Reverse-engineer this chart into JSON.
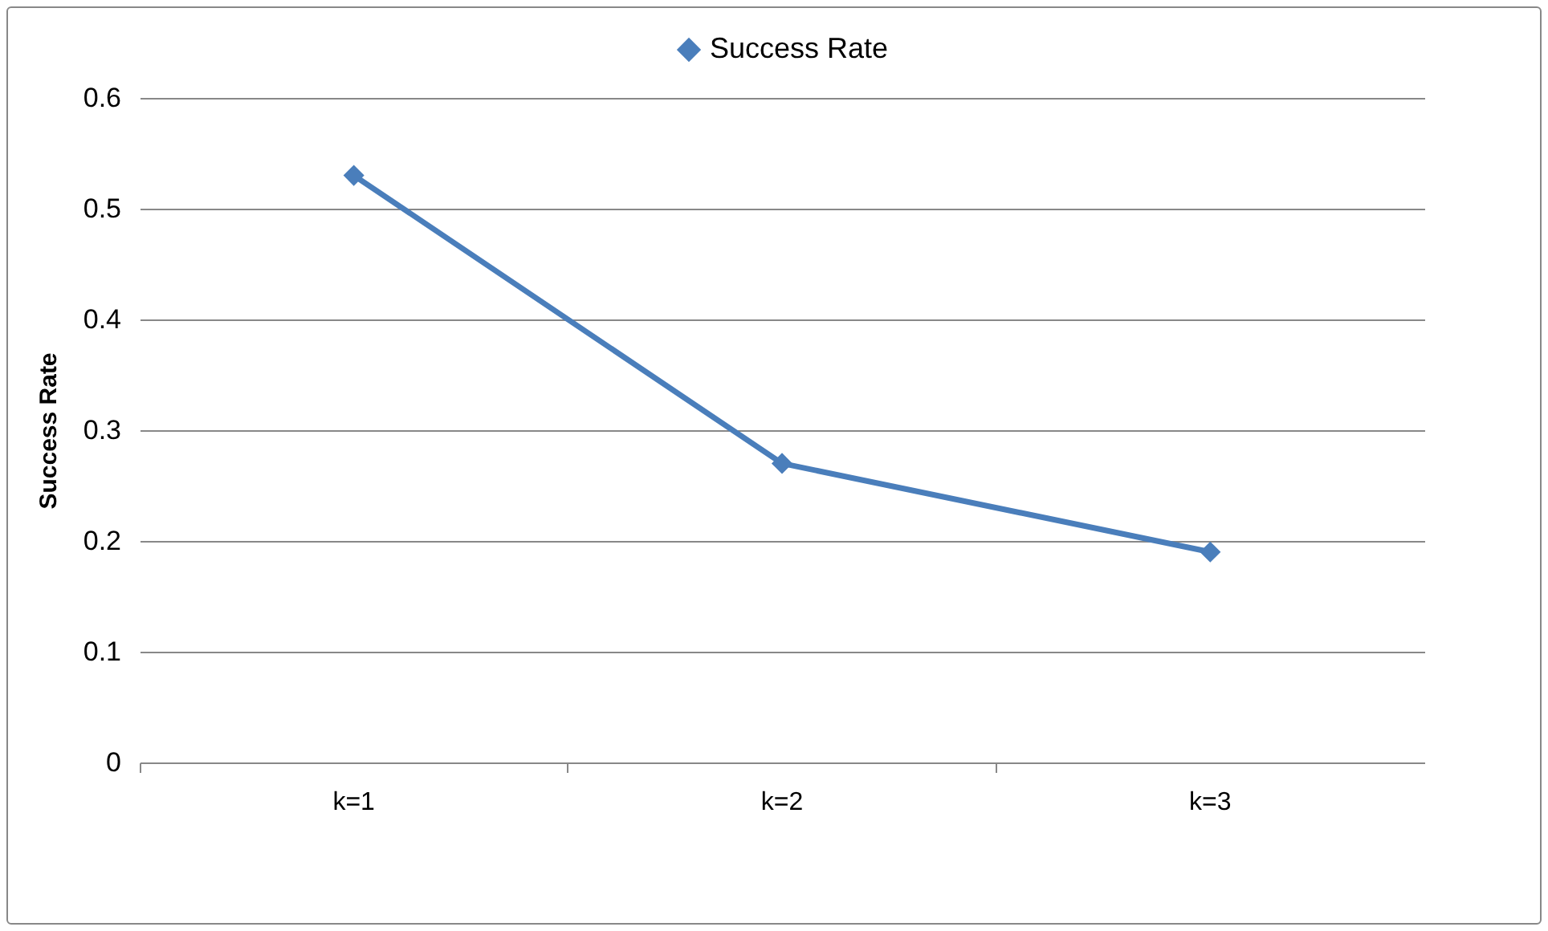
{
  "chart_data": {
    "type": "line",
    "ylabel": "Success Rate",
    "categories": [
      "k=1",
      "k=2",
      "k=3"
    ],
    "series": [
      {
        "name": "Success Rate",
        "color": "#4a7ebb",
        "values": [
          0.53,
          0.27,
          0.19
        ]
      }
    ],
    "ylim": [
      0,
      0.6
    ],
    "yticks": [
      0,
      0.1,
      0.2,
      0.3,
      0.4,
      0.5,
      0.6
    ],
    "grid": "y",
    "legend": "top",
    "marker": "diamond",
    "line_style": "solid"
  }
}
